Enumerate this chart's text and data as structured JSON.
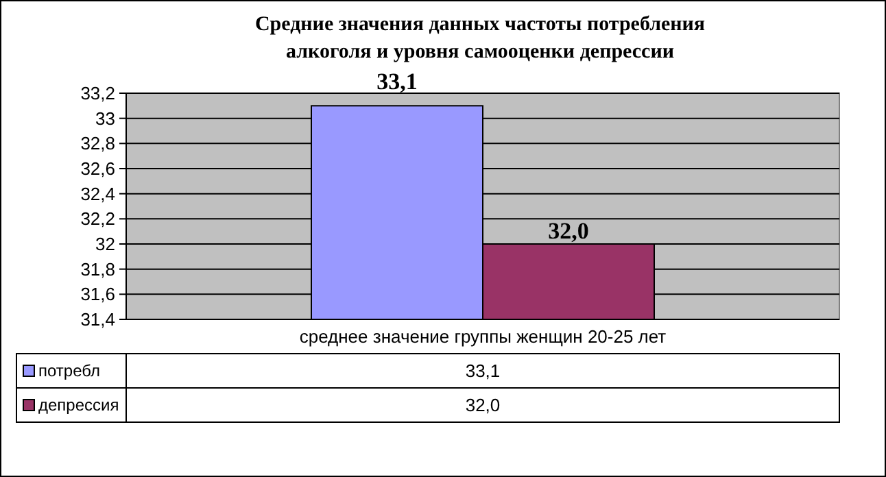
{
  "chart_data": {
    "type": "bar",
    "title": "Средние значения данных частоты потребления\nалкоголя и уровня самооценки депрессии",
    "categories": [
      "среднее значение группы женщин 20-25 лет"
    ],
    "series": [
      {
        "name": "потребл",
        "color": "#9999ff",
        "values": [
          33.1
        ],
        "value_labels": [
          "33,1"
        ]
      },
      {
        "name": "депрессия",
        "color": "#993366",
        "values": [
          32.0
        ],
        "value_labels": [
          "32,0"
        ]
      }
    ],
    "ylim": [
      31.4,
      33.2
    ],
    "yticks": [
      {
        "value": 31.4,
        "label": "31,4"
      },
      {
        "value": 31.6,
        "label": "31,6"
      },
      {
        "value": 31.8,
        "label": "31,8"
      },
      32,
      {
        "value": 32.2,
        "label": "32,2"
      },
      {
        "value": 32.4,
        "label": "32,4"
      },
      {
        "value": 32.6,
        "label": "32,6"
      },
      {
        "value": 32.8,
        "label": "32,8"
      },
      33,
      {
        "value": 33.2,
        "label": "33,2"
      }
    ],
    "grid": "y",
    "legend": "bottom"
  }
}
